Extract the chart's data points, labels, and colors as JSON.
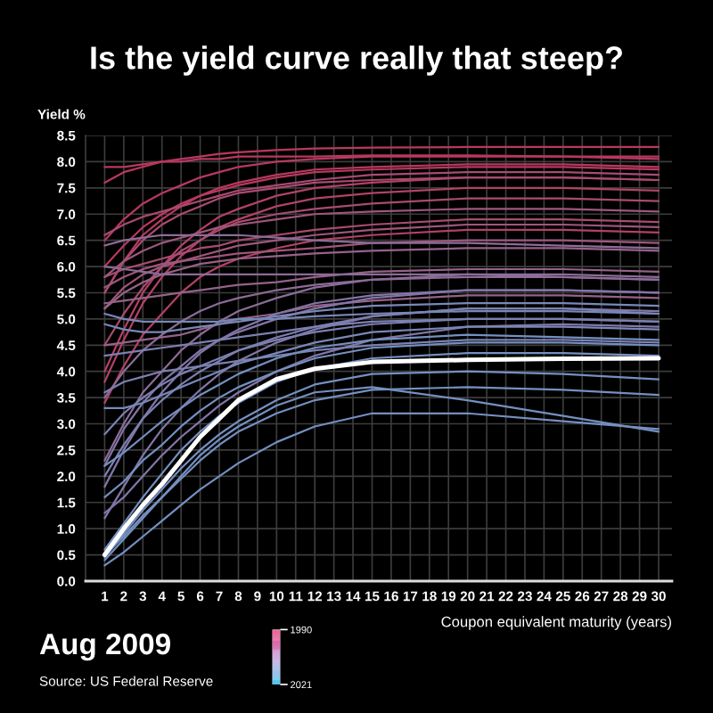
{
  "chart_data": {
    "type": "line",
    "title": "Is the yield curve really that steep?",
    "xlabel": "Coupon equivalent maturity (years)",
    "ylabel": "Yield %",
    "annotations": [
      "Aug 2009",
      "Source: US Federal Reserve"
    ],
    "x": [
      1,
      2,
      3,
      4,
      5,
      6,
      7,
      8,
      10,
      12,
      15,
      20,
      25,
      30
    ],
    "series": [
      {
        "color": "#b8395f",
        "values": [
          7.6,
          7.8,
          7.9,
          8.0,
          8.05,
          8.1,
          8.15,
          8.18,
          8.22,
          8.25,
          8.27,
          8.28,
          8.28,
          8.28
        ]
      },
      {
        "color": "#b8395f",
        "values": [
          7.9,
          7.9,
          7.95,
          8.0,
          8.0,
          8.05,
          8.05,
          8.1,
          8.1,
          8.1,
          8.12,
          8.12,
          8.1,
          8.1
        ]
      },
      {
        "color": "#b8395f",
        "values": [
          6.5,
          6.9,
          7.2,
          7.4,
          7.55,
          7.7,
          7.8,
          7.9,
          8.0,
          8.05,
          8.1,
          8.1,
          8.1,
          8.05
        ]
      },
      {
        "color": "#b8395f",
        "values": [
          6.0,
          6.4,
          6.75,
          7.0,
          7.2,
          7.35,
          7.45,
          7.55,
          7.7,
          7.8,
          7.85,
          7.9,
          7.9,
          7.85
        ]
      },
      {
        "color": "#b8395f",
        "values": [
          5.5,
          6.1,
          6.6,
          6.9,
          7.15,
          7.35,
          7.5,
          7.6,
          7.75,
          7.85,
          7.9,
          7.95,
          7.95,
          7.9
        ]
      },
      {
        "color": "#b24266",
        "values": [
          4.0,
          4.8,
          5.5,
          6.0,
          6.4,
          6.7,
          6.95,
          7.1,
          7.35,
          7.5,
          7.6,
          7.7,
          7.7,
          7.65
        ]
      },
      {
        "color": "#b24266",
        "values": [
          3.8,
          4.6,
          5.3,
          5.8,
          6.2,
          6.5,
          6.75,
          6.9,
          7.15,
          7.3,
          7.4,
          7.5,
          7.5,
          7.45
        ]
      },
      {
        "color": "#b24266",
        "values": [
          3.4,
          4.1,
          4.7,
          5.1,
          5.5,
          5.8,
          6.0,
          6.15,
          6.35,
          6.5,
          6.6,
          6.7,
          6.7,
          6.65
        ]
      },
      {
        "color": "#a94b70",
        "values": [
          4.5,
          5.1,
          5.6,
          6.0,
          6.3,
          6.5,
          6.7,
          6.85,
          7.0,
          7.1,
          7.2,
          7.3,
          7.3,
          7.25
        ]
      },
      {
        "color": "#a94b70",
        "values": [
          5.5,
          6.1,
          6.5,
          6.8,
          7.0,
          7.15,
          7.3,
          7.4,
          7.5,
          7.6,
          7.65,
          7.7,
          7.7,
          7.65
        ]
      },
      {
        "color": "#a94b70",
        "values": [
          6.6,
          6.8,
          6.95,
          7.05,
          7.15,
          7.25,
          7.35,
          7.45,
          7.55,
          7.65,
          7.75,
          7.8,
          7.8,
          7.75
        ]
      },
      {
        "color": "#a94b70",
        "values": [
          5.8,
          5.95,
          6.05,
          6.15,
          6.25,
          6.35,
          6.4,
          6.5,
          6.6,
          6.7,
          6.8,
          6.9,
          6.9,
          6.85
        ]
      },
      {
        "color": "#a0567c",
        "values": [
          5.2,
          5.6,
          5.85,
          6.0,
          6.1,
          6.2,
          6.3,
          6.4,
          6.5,
          6.6,
          6.7,
          6.8,
          6.8,
          6.75
        ]
      },
      {
        "color": "#a0567c",
        "values": [
          5.8,
          6.1,
          6.3,
          6.45,
          6.55,
          6.65,
          6.75,
          6.8,
          6.9,
          7.0,
          7.05,
          7.1,
          7.1,
          7.05
        ]
      },
      {
        "color": "#a0567c",
        "values": [
          5.6,
          5.8,
          5.95,
          6.05,
          6.1,
          6.15,
          6.2,
          6.25,
          6.3,
          6.35,
          6.45,
          6.5,
          6.5,
          6.45
        ]
      },
      {
        "color": "#976288",
        "values": [
          5.3,
          5.35,
          5.4,
          5.45,
          5.5,
          5.55,
          5.6,
          5.65,
          5.7,
          5.8,
          5.9,
          5.95,
          5.95,
          5.9
        ]
      },
      {
        "color": "#976288",
        "values": [
          4.5,
          4.55,
          4.6,
          4.65,
          4.7,
          4.8,
          4.9,
          5.0,
          5.1,
          5.25,
          5.35,
          5.45,
          5.45,
          5.4
        ]
      },
      {
        "color": "#976288",
        "values": [
          5.2,
          5.5,
          5.7,
          5.85,
          5.95,
          6.05,
          6.1,
          6.15,
          6.2,
          6.25,
          6.3,
          6.35,
          6.35,
          6.3
        ]
      },
      {
        "color": "#8c6c98",
        "values": [
          6.4,
          6.5,
          6.55,
          6.6,
          6.6,
          6.6,
          6.6,
          6.6,
          6.55,
          6.5,
          6.45,
          6.45,
          6.4,
          6.35
        ]
      },
      {
        "color": "#8c6c98",
        "values": [
          6.0,
          5.95,
          5.9,
          5.85,
          5.85,
          5.85,
          5.85,
          5.85,
          5.85,
          5.85,
          5.85,
          5.85,
          5.8,
          5.75
        ]
      },
      {
        "color": "#8c6c98",
        "values": [
          3.5,
          4.0,
          4.4,
          4.7,
          4.95,
          5.15,
          5.3,
          5.4,
          5.55,
          5.65,
          5.75,
          5.8,
          5.8,
          5.75
        ]
      },
      {
        "color": "#8c6c98",
        "values": [
          2.3,
          3.0,
          3.6,
          4.0,
          4.4,
          4.7,
          4.95,
          5.15,
          5.4,
          5.6,
          5.75,
          5.85,
          5.85,
          5.8
        ]
      },
      {
        "color": "#8276a8",
        "values": [
          1.8,
          2.5,
          3.1,
          3.6,
          4.0,
          4.35,
          4.6,
          4.8,
          5.1,
          5.3,
          5.45,
          5.55,
          5.55,
          5.5
        ]
      },
      {
        "color": "#8276a8",
        "values": [
          2.2,
          2.9,
          3.4,
          3.8,
          4.1,
          4.4,
          4.6,
          4.75,
          5.0,
          5.2,
          5.4,
          5.55,
          5.55,
          5.5
        ]
      },
      {
        "color": "#8276a8",
        "values": [
          1.2,
          1.8,
          2.4,
          2.9,
          3.3,
          3.65,
          3.95,
          4.2,
          4.55,
          4.8,
          5.05,
          5.2,
          5.2,
          5.15
        ]
      },
      {
        "color": "#8276a8",
        "values": [
          1.3,
          1.6,
          2.0,
          2.4,
          2.75,
          3.05,
          3.35,
          3.6,
          4.0,
          4.3,
          4.6,
          4.85,
          4.9,
          4.85
        ]
      },
      {
        "color": "#7c80b2",
        "values": [
          2.0,
          2.6,
          3.1,
          3.45,
          3.75,
          4.0,
          4.2,
          4.4,
          4.65,
          4.85,
          5.05,
          5.2,
          5.2,
          5.1
        ]
      },
      {
        "color": "#7c80b2",
        "values": [
          2.8,
          3.2,
          3.5,
          3.75,
          3.95,
          4.1,
          4.25,
          4.4,
          4.6,
          4.75,
          4.9,
          5.0,
          5.0,
          4.95
        ]
      },
      {
        "color": "#7c80b2",
        "values": [
          3.6,
          3.8,
          3.9,
          4.0,
          4.05,
          4.1,
          4.15,
          4.2,
          4.3,
          4.4,
          4.5,
          4.6,
          4.6,
          4.55
        ]
      },
      {
        "color": "#7c80b2",
        "values": [
          4.3,
          4.35,
          4.4,
          4.45,
          4.5,
          4.55,
          4.6,
          4.65,
          4.75,
          4.85,
          4.95,
          5.0,
          5.0,
          4.95
        ]
      },
      {
        "color": "#7888b8",
        "values": [
          5.1,
          5.0,
          4.95,
          4.95,
          4.95,
          4.95,
          4.95,
          5.0,
          5.0,
          5.05,
          5.1,
          5.15,
          5.15,
          5.1
        ]
      },
      {
        "color": "#7888b8",
        "values": [
          4.9,
          4.8,
          4.75,
          4.75,
          4.8,
          4.85,
          4.9,
          4.95,
          5.05,
          5.15,
          5.25,
          5.3,
          5.3,
          5.25
        ]
      },
      {
        "color": "#7888b8",
        "values": [
          3.3,
          3.3,
          3.4,
          3.55,
          3.7,
          3.85,
          4.0,
          4.15,
          4.35,
          4.55,
          4.75,
          4.85,
          4.85,
          4.8
        ]
      },
      {
        "color": "#7490c0",
        "values": [
          2.2,
          2.45,
          2.75,
          3.05,
          3.3,
          3.55,
          3.75,
          3.95,
          4.25,
          4.45,
          4.6,
          4.7,
          4.65,
          4.6
        ]
      },
      {
        "color": "#7490c0",
        "values": [
          1.6,
          1.9,
          2.3,
          2.6,
          2.95,
          3.25,
          3.5,
          3.7,
          4.0,
          4.25,
          4.45,
          4.55,
          4.55,
          4.5
        ]
      },
      {
        "color": "#7490c0",
        "values": [
          0.3,
          0.55,
          0.85,
          1.15,
          1.45,
          1.75,
          2.0,
          2.25,
          2.65,
          2.95,
          3.2,
          3.2,
          3.05,
          2.9
        ]
      },
      {
        "color": "#7490c0",
        "values": [
          0.4,
          0.8,
          1.2,
          1.6,
          2.0,
          2.4,
          2.7,
          2.95,
          3.35,
          3.6,
          3.7,
          3.45,
          3.15,
          2.85
        ]
      },
      {
        "color": "#7490c0",
        "values": [
          0.5,
          0.85,
          1.25,
          1.6,
          1.95,
          2.3,
          2.6,
          2.85,
          3.2,
          3.45,
          3.65,
          3.7,
          3.65,
          3.55
        ]
      },
      {
        "color": "#7490c0",
        "values": [
          0.45,
          0.9,
          1.35,
          1.75,
          2.15,
          2.5,
          2.8,
          3.05,
          3.45,
          3.75,
          3.95,
          4.0,
          3.95,
          3.85
        ]
      },
      {
        "color": "#7490c0",
        "values": [
          0.6,
          1.1,
          1.6,
          2.05,
          2.5,
          2.85,
          3.15,
          3.4,
          3.8,
          4.05,
          4.25,
          4.35,
          4.35,
          4.3
        ]
      },
      {
        "color": "#ffffff",
        "values": [
          0.5,
          1.0,
          1.45,
          1.85,
          2.3,
          2.75,
          3.1,
          3.45,
          3.85,
          4.05,
          4.18,
          4.22,
          4.24,
          4.25
        ]
      }
    ],
    "xlim": [
      0,
      30.7
    ],
    "ylim": [
      0,
      8.5
    ],
    "xticks": [
      1,
      2,
      3,
      4,
      5,
      6,
      7,
      8,
      9,
      10,
      11,
      12,
      13,
      14,
      15,
      16,
      17,
      18,
      19,
      20,
      21,
      22,
      23,
      24,
      25,
      26,
      27,
      28,
      29,
      30
    ],
    "yticks": [
      {
        "value": 0,
        "label": "0.0"
      },
      0.5,
      {
        "value": 1,
        "label": "1.0"
      },
      1.5,
      {
        "value": 2,
        "label": "2.0"
      },
      2.5,
      {
        "value": 3,
        "label": "3.0"
      },
      3.5,
      {
        "value": 4,
        "label": "4.0"
      },
      4.5,
      {
        "value": 5,
        "label": "5.0"
      },
      5.5,
      {
        "value": 6,
        "label": "6.0"
      },
      6.5,
      {
        "value": 7,
        "label": "7.0"
      },
      7.5,
      {
        "value": 8,
        "label": "8.0"
      },
      8.5
    ],
    "grid": true,
    "clim": [
      2021,
      1990
    ],
    "cticks": [
      1990,
      2021
    ]
  }
}
